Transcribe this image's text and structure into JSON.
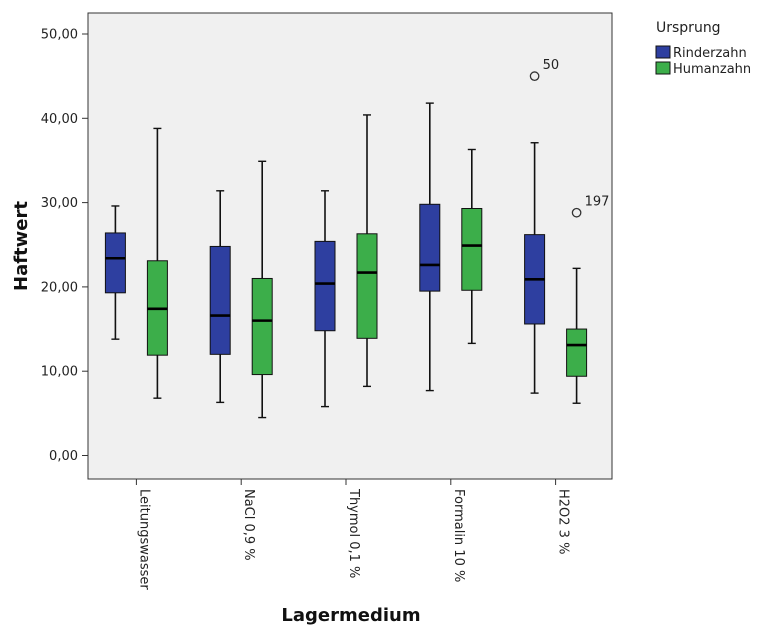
{
  "chart_data": {
    "type": "boxplot",
    "xlabel": "Lagermedium",
    "ylabel": "Haftwert",
    "ylim": [
      0,
      50
    ],
    "yticks": [
      "0,00",
      "10,00",
      "20,00",
      "30,00",
      "40,00",
      "50,00"
    ],
    "yticks_values": [
      0,
      10,
      20,
      30,
      40,
      50
    ],
    "grid": false,
    "legend": {
      "title": "Ursprung",
      "position": "top-right"
    },
    "categories": [
      "Leitungswasser",
      "NaCl 0,9 %",
      "Thymol 0,1 %",
      "Formalin 10 %",
      "H2O2 3 %"
    ],
    "series": [
      {
        "name": "Rinderzahn",
        "color": "#2e3fa0",
        "boxes": [
          {
            "min": 13.8,
            "q1": 19.3,
            "median": 23.4,
            "q3": 26.4,
            "max": 29.6
          },
          {
            "min": 6.3,
            "q1": 12.0,
            "median": 16.6,
            "q3": 24.8,
            "max": 31.4
          },
          {
            "min": 5.8,
            "q1": 14.8,
            "median": 20.4,
            "q3": 25.4,
            "max": 31.4
          },
          {
            "min": 7.7,
            "q1": 19.5,
            "median": 22.6,
            "q3": 29.8,
            "max": 41.8
          },
          {
            "min": 7.4,
            "q1": 15.6,
            "median": 20.9,
            "q3": 26.2,
            "max": 37.1
          }
        ],
        "outliers": [
          {
            "category_index": 4,
            "value": 45.0,
            "label": "50"
          }
        ]
      },
      {
        "name": "Humanzahn",
        "color": "#3cae4a",
        "boxes": [
          {
            "min": 6.8,
            "q1": 11.9,
            "median": 17.4,
            "q3": 23.1,
            "max": 38.8
          },
          {
            "min": 4.5,
            "q1": 9.6,
            "median": 16.0,
            "q3": 21.0,
            "max": 34.9
          },
          {
            "min": 8.2,
            "q1": 13.9,
            "median": 21.7,
            "q3": 26.3,
            "max": 40.4
          },
          {
            "min": 13.3,
            "q1": 19.6,
            "median": 24.9,
            "q3": 29.3,
            "max": 36.3
          },
          {
            "min": 6.2,
            "q1": 9.4,
            "median": 13.1,
            "q3": 15.0,
            "max": 22.2
          }
        ],
        "outliers": [
          {
            "category_index": 4,
            "value": 28.8,
            "label": "197"
          }
        ]
      }
    ]
  }
}
